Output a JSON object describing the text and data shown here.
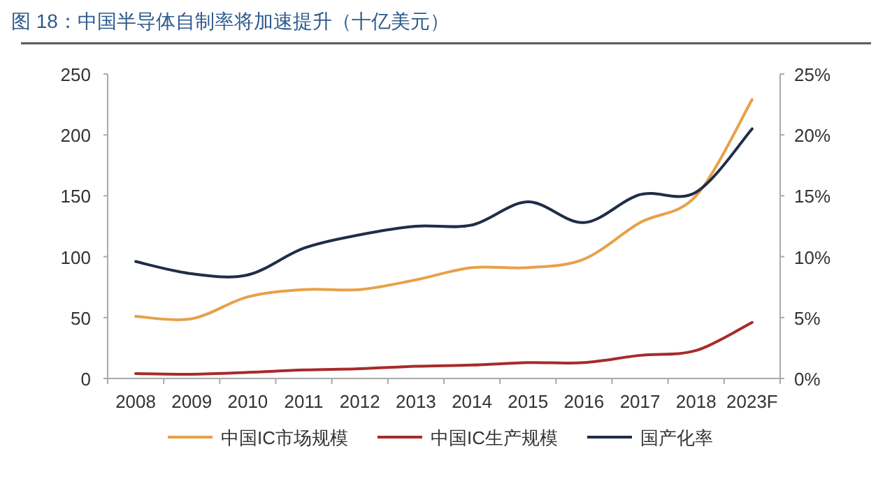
{
  "chart_data": {
    "type": "line",
    "title": "图 18：中国半导体自制率将加速提升（十亿美元）",
    "categories": [
      "2008",
      "2009",
      "2010",
      "2011",
      "2012",
      "2013",
      "2014",
      "2015",
      "2016",
      "2017",
      "2018",
      "2023F"
    ],
    "series": [
      {
        "name": "中国IC市场规模",
        "color": "#e8a048",
        "values": [
          51,
          49,
          67,
          73,
          73,
          81,
          91,
          91,
          98,
          128,
          150,
          229
        ]
      },
      {
        "name": "中国IC生产规模",
        "color": "#a82a2a",
        "values": [
          4,
          3.5,
          5,
          7,
          8,
          10,
          11,
          13,
          13,
          19,
          23,
          46
        ]
      },
      {
        "name": "国产化率",
        "color": "#1f2d48",
        "axis": "y2",
        "values": [
          9.6,
          8.6,
          8.5,
          10.7,
          11.8,
          12.5,
          12.6,
          14.5,
          12.8,
          15.1,
          15.3,
          20.5
        ]
      }
    ],
    "ylim": [
      0,
      250
    ],
    "yticks": [
      0,
      50,
      100,
      150,
      200,
      250
    ],
    "y2lim": [
      0,
      25
    ],
    "y2ticks": [
      {
        "value": 0,
        "label": "0%"
      },
      {
        "value": 5,
        "label": "5%"
      },
      {
        "value": 10,
        "label": "10%"
      },
      {
        "value": 15,
        "label": "15%"
      },
      {
        "value": 20,
        "label": "20%"
      },
      {
        "value": 25,
        "label": "25%"
      }
    ],
    "legend": "bottom",
    "grid": false
  }
}
